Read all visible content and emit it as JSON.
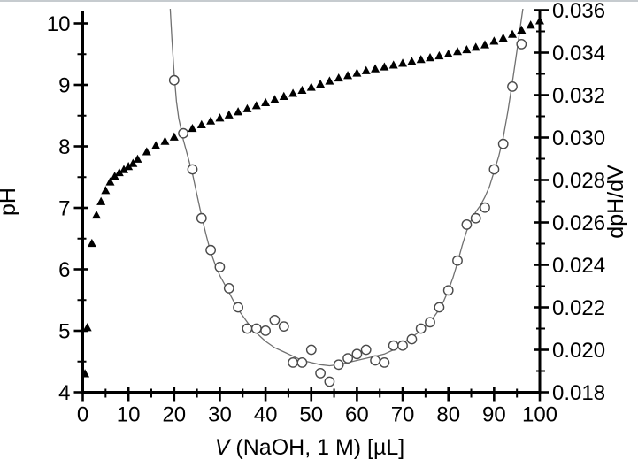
{
  "window": {
    "background": "#ffffff",
    "top_border_color": "#c6cbcf"
  },
  "axes": {
    "x": {
      "title": "V (NaOH, 1 M) [µL]",
      "title_parts": {
        "italic": "V",
        "rest": "(NaOH, 1 M) [µL]"
      },
      "min": 0,
      "max": 100,
      "major_ticks": [
        0,
        10,
        20,
        30,
        40,
        50,
        60,
        70,
        80,
        90,
        100
      ],
      "tick_labels": [
        "0",
        "10",
        "20",
        "30",
        "40",
        "50",
        "60",
        "70",
        "80",
        "90",
        "100"
      ],
      "minor_step": 5
    },
    "y_left": {
      "title": "pH",
      "min": 4,
      "max": 10,
      "major_ticks": [
        4,
        5,
        6,
        7,
        8,
        9,
        10
      ],
      "tick_labels": [
        "4",
        "5",
        "6",
        "7",
        "8",
        "9",
        "10"
      ],
      "minor_step": 0.5
    },
    "y_right": {
      "title": "dpH/dV",
      "min": 0.018,
      "max": 0.036,
      "major_ticks": [
        0.018,
        0.02,
        0.022,
        0.024,
        0.026,
        0.028,
        0.03,
        0.032,
        0.034,
        0.036
      ],
      "tick_labels": [
        "0.018",
        "0.020",
        "0.022",
        "0.024",
        "0.026",
        "0.028",
        "0.030",
        "0.032",
        "0.034",
        "0.036"
      ],
      "minor_step": 0.001
    }
  },
  "chart_data": {
    "type": "scatter",
    "title": "",
    "xlabel": "V (NaOH, 1 M) [µL]",
    "ylabel_left": "pH",
    "ylabel_right": "dpH/dV",
    "x_range": [
      0,
      100
    ],
    "y_left_range": [
      4,
      10
    ],
    "y_right_range": [
      0.018,
      0.036
    ],
    "grid": false,
    "legend": "none",
    "colors": {
      "markers": "#000000",
      "circle_stroke": "#4a4a4a",
      "fit_line": "#707070",
      "axis": "#000000"
    },
    "series": [
      {
        "name": "pH titration curve",
        "marker": "filled-triangle",
        "y_axis": "left",
        "points": [
          [
            0.5,
            4.3
          ],
          [
            1,
            5.05
          ],
          [
            2,
            6.42
          ],
          [
            3,
            6.88
          ],
          [
            4,
            7.1
          ],
          [
            5,
            7.28
          ],
          [
            6,
            7.42
          ],
          [
            7,
            7.51
          ],
          [
            8,
            7.57
          ],
          [
            9,
            7.62
          ],
          [
            10,
            7.67
          ],
          [
            11,
            7.72
          ],
          [
            12,
            7.79
          ],
          [
            14,
            7.91
          ],
          [
            16,
            8.01
          ],
          [
            18,
            8.08
          ],
          [
            20,
            8.15
          ],
          [
            22,
            8.22
          ],
          [
            24,
            8.29
          ],
          [
            26,
            8.35
          ],
          [
            28,
            8.41
          ],
          [
            30,
            8.46
          ],
          [
            32,
            8.51
          ],
          [
            34,
            8.56
          ],
          [
            36,
            8.61
          ],
          [
            38,
            8.66
          ],
          [
            40,
            8.71
          ],
          [
            42,
            8.76
          ],
          [
            44,
            8.81
          ],
          [
            46,
            8.86
          ],
          [
            48,
            8.91
          ],
          [
            50,
            8.96
          ],
          [
            52,
            9.01
          ],
          [
            54,
            9.06
          ],
          [
            56,
            9.11
          ],
          [
            58,
            9.15
          ],
          [
            60,
            9.19
          ],
          [
            62,
            9.23
          ],
          [
            64,
            9.26
          ],
          [
            66,
            9.29
          ],
          [
            68,
            9.32
          ],
          [
            70,
            9.35
          ],
          [
            72,
            9.38
          ],
          [
            74,
            9.41
          ],
          [
            76,
            9.44
          ],
          [
            78,
            9.47
          ],
          [
            80,
            9.5
          ],
          [
            82,
            9.54
          ],
          [
            84,
            9.57
          ],
          [
            86,
            9.61
          ],
          [
            88,
            9.65
          ],
          [
            90,
            9.71
          ],
          [
            92,
            9.76
          ],
          [
            94,
            9.82
          ],
          [
            96,
            9.89
          ],
          [
            98,
            9.97
          ],
          [
            100,
            10.04
          ]
        ]
      },
      {
        "name": "dpH/dV derivative",
        "marker": "open-circle",
        "y_axis": "right",
        "points": [
          [
            20,
            0.0327
          ],
          [
            22,
            0.0302
          ],
          [
            24,
            0.0285
          ],
          [
            26,
            0.0262
          ],
          [
            28,
            0.0247
          ],
          [
            30,
            0.0239
          ],
          [
            32,
            0.0229
          ],
          [
            34,
            0.022
          ],
          [
            36,
            0.021
          ],
          [
            38,
            0.021
          ],
          [
            40,
            0.0209
          ],
          [
            42,
            0.0214
          ],
          [
            44,
            0.0211
          ],
          [
            46,
            0.0194
          ],
          [
            48,
            0.0194
          ],
          [
            50,
            0.02
          ],
          [
            52,
            0.0189
          ],
          [
            54,
            0.0185
          ],
          [
            56,
            0.0193
          ],
          [
            58,
            0.0196
          ],
          [
            60,
            0.0198
          ],
          [
            62,
            0.02
          ],
          [
            64,
            0.0195
          ],
          [
            66,
            0.0194
          ],
          [
            68,
            0.0202
          ],
          [
            70,
            0.0202
          ],
          [
            72,
            0.0205
          ],
          [
            74,
            0.021
          ],
          [
            76,
            0.0213
          ],
          [
            78,
            0.022
          ],
          [
            80,
            0.0228
          ],
          [
            82,
            0.0242
          ],
          [
            84,
            0.0259
          ],
          [
            86,
            0.0262
          ],
          [
            88,
            0.0267
          ],
          [
            90,
            0.0285
          ],
          [
            92,
            0.0297
          ],
          [
            94,
            0.0324
          ],
          [
            96,
            0.0344
          ]
        ]
      }
    ],
    "fit_curve": {
      "name": "dpH/dV smoothed fit",
      "y_axis": "right",
      "points": [
        [
          19.1,
          0.0362
        ],
        [
          19.5,
          0.0347
        ],
        [
          20,
          0.033
        ],
        [
          20.5,
          0.0317
        ],
        [
          21,
          0.0309
        ],
        [
          22,
          0.0299
        ],
        [
          23,
          0.0291
        ],
        [
          24,
          0.0283
        ],
        [
          25,
          0.0273
        ],
        [
          26,
          0.0263
        ],
        [
          27,
          0.0254
        ],
        [
          28,
          0.0246
        ],
        [
          29,
          0.024
        ],
        [
          30,
          0.0235
        ],
        [
          31,
          0.0231
        ],
        [
          32,
          0.0227
        ],
        [
          33,
          0.0223
        ],
        [
          34,
          0.0219
        ],
        [
          35,
          0.0216
        ],
        [
          36,
          0.0213
        ],
        [
          37,
          0.021
        ],
        [
          38,
          0.0208
        ],
        [
          39,
          0.0206
        ],
        [
          40,
          0.0204
        ],
        [
          42,
          0.0201
        ],
        [
          44,
          0.0199
        ],
        [
          46,
          0.0197
        ],
        [
          48,
          0.0195
        ],
        [
          50,
          0.0194
        ],
        [
          52,
          0.0193
        ],
        [
          54,
          0.01925
        ],
        [
          56,
          0.0193
        ],
        [
          58,
          0.0194
        ],
        [
          60,
          0.0195
        ],
        [
          62,
          0.0196
        ],
        [
          64,
          0.0197
        ],
        [
          66,
          0.0198
        ],
        [
          68,
          0.02
        ],
        [
          70,
          0.0203
        ],
        [
          72,
          0.0206
        ],
        [
          74,
          0.0209
        ],
        [
          76,
          0.0213
        ],
        [
          78,
          0.0219
        ],
        [
          79,
          0.0223
        ],
        [
          80,
          0.0228
        ],
        [
          81,
          0.0234
        ],
        [
          82,
          0.0241
        ],
        [
          83,
          0.0249
        ],
        [
          84,
          0.0256
        ],
        [
          85,
          0.0261
        ],
        [
          86,
          0.0265
        ],
        [
          87,
          0.0268
        ],
        [
          88,
          0.0272
        ],
        [
          89,
          0.0277
        ],
        [
          90,
          0.0284
        ],
        [
          91,
          0.0291
        ],
        [
          92,
          0.03
        ],
        [
          93,
          0.0312
        ],
        [
          94,
          0.0326
        ],
        [
          95,
          0.0341
        ],
        [
          96,
          0.0356
        ],
        [
          96.4,
          0.0362
        ]
      ]
    }
  }
}
